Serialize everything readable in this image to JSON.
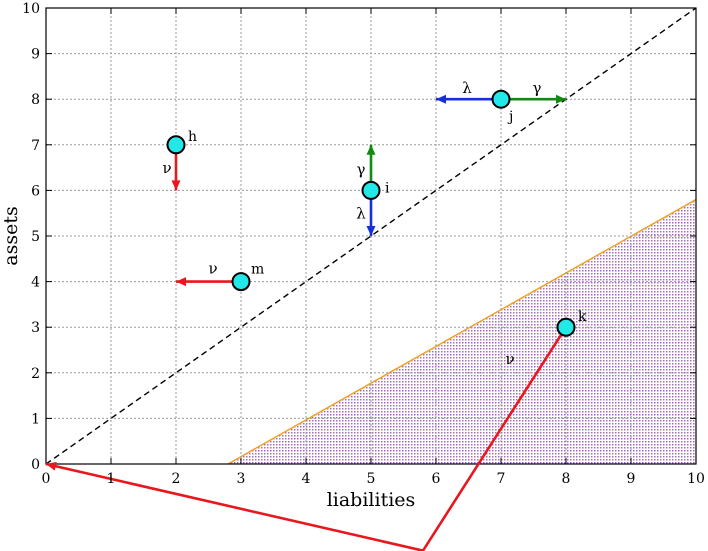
{
  "chart_data": {
    "type": "scatter",
    "xlabel": "liabilities",
    "ylabel": "assets",
    "xlim": [
      0,
      10
    ],
    "ylim": [
      0,
      10
    ],
    "xticks": [
      "0",
      "1",
      "2",
      "3",
      "4",
      "5",
      "6",
      "7",
      "8",
      "9",
      "10"
    ],
    "yticks": [
      "0",
      "1",
      "2",
      "3",
      "4",
      "5",
      "6",
      "7",
      "8",
      "9",
      "10"
    ],
    "grid": true,
    "diagonal": [
      [
        0,
        0
      ],
      [
        10,
        10
      ]
    ],
    "shaded_region": {
      "boundary": [
        [
          2.8,
          0
        ],
        [
          10,
          5.8
        ]
      ],
      "fill_color": "#cdb1d6",
      "line_color": "#f0a020"
    },
    "points": [
      {
        "name": "h",
        "x": 2,
        "y": 7
      },
      {
        "name": "m",
        "x": 3,
        "y": 4
      },
      {
        "name": "i",
        "x": 5,
        "y": 6
      },
      {
        "name": "j",
        "x": 7,
        "y": 8
      },
      {
        "name": "k",
        "x": 8,
        "y": 3
      }
    ],
    "arrows": [
      {
        "label": "ν",
        "from": [
          2,
          7
        ],
        "to": [
          2,
          6
        ],
        "color": "#e8171e"
      },
      {
        "label": "ν",
        "from": [
          3,
          4
        ],
        "to": [
          2,
          4
        ],
        "color": "#e8171e"
      },
      {
        "label": "γ",
        "from": [
          5,
          6
        ],
        "to": [
          5,
          7
        ],
        "color": "#118a11"
      },
      {
        "label": "λ",
        "from": [
          5,
          6
        ],
        "to": [
          5,
          5
        ],
        "color": "#1530d8"
      },
      {
        "label": "λ",
        "from": [
          7,
          8
        ],
        "to": [
          6,
          8
        ],
        "color": "#1530d8"
      },
      {
        "label": "γ",
        "from": [
          7,
          8
        ],
        "to": [
          8,
          8
        ],
        "color": "#118a11"
      },
      {
        "label": "ν",
        "from": [
          8,
          3
        ],
        "via": [
          5.8,
          -1.9
        ],
        "to": [
          0,
          0
        ],
        "color": "#e8171e"
      }
    ],
    "colors": {
      "point_fill": "#22e8e8",
      "grid": "#9a9a9a",
      "nu": "#e8171e",
      "gamma": "#118a11",
      "lambda": "#1530d8"
    }
  }
}
